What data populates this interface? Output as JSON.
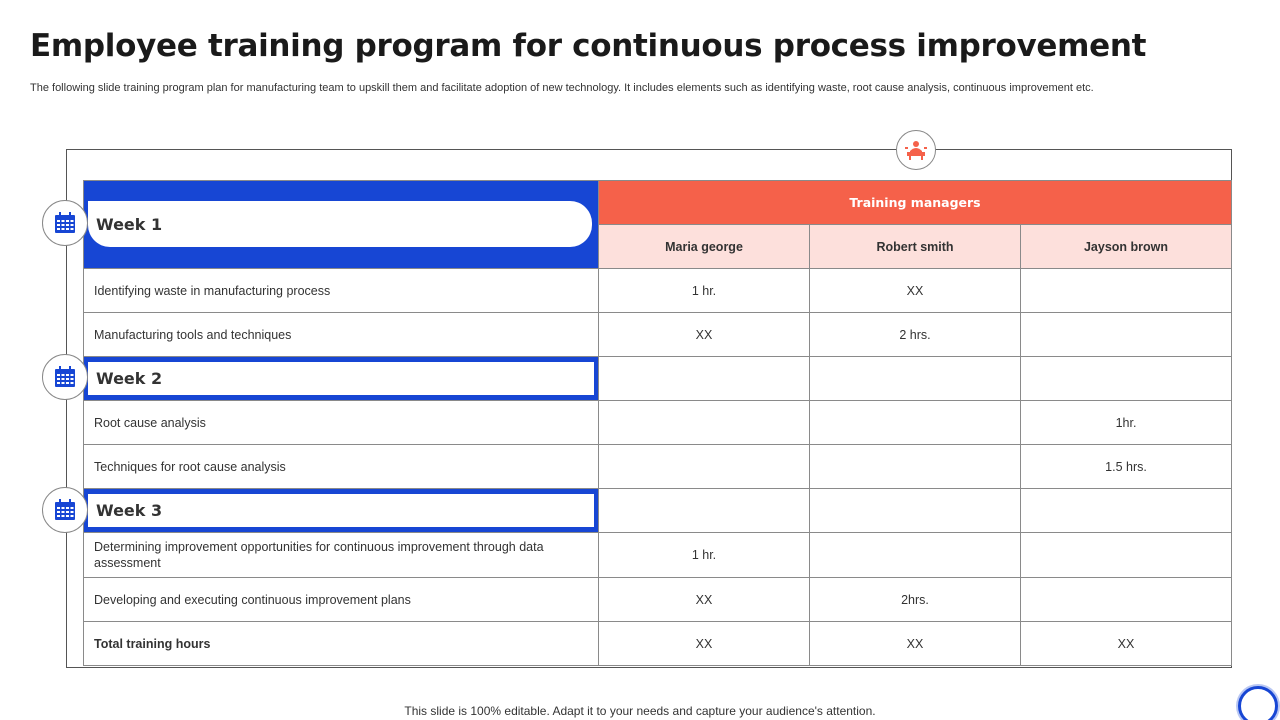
{
  "title": "Employee training program for continuous process improvement",
  "subtitle": "The following slide training program plan for manufacturing team to upskill them and facilitate adoption of new technology. It includes elements such as identifying waste, root cause analysis, continuous improvement etc.",
  "table": {
    "group_header": "Training managers",
    "managers": [
      "Maria george",
      "Robert smith",
      "Jayson brown"
    ],
    "weeks": [
      {
        "label": "Week 1",
        "rows": [
          {
            "task": "Identifying waste in manufacturing  process",
            "values": [
              "1 hr.",
              "XX",
              ""
            ]
          },
          {
            "task": "Manufacturing  tools and techniques",
            "values": [
              "XX",
              "2 hrs.",
              ""
            ]
          }
        ]
      },
      {
        "label": "Week 2",
        "rows": [
          {
            "task": "Root  cause analysis",
            "values": [
              "",
              "",
              "1hr."
            ]
          },
          {
            "task": "Techniques for root cause analysis",
            "values": [
              "",
              "",
              "1.5 hrs."
            ]
          }
        ]
      },
      {
        "label": "Week 3",
        "rows": [
          {
            "task": "Determining  improvement  opportunities for continuous improvement  through data assessment",
            "values": [
              "1 hr.",
              "",
              ""
            ]
          },
          {
            "task": "Developing  and executing continuous improvement  plans",
            "values": [
              "XX",
              "2hrs.",
              ""
            ]
          }
        ]
      }
    ],
    "total": {
      "label": "Total training hours",
      "values": [
        "XX",
        "XX",
        "XX"
      ]
    }
  },
  "icons": {
    "top": "presenter-icon",
    "week": "calendar-icon"
  },
  "colors": {
    "blue": "#1746d4",
    "orange": "#f5614a",
    "pink": "#fde0dc"
  },
  "footer": "This slide is 100% editable. Adapt it to your needs and capture your audience's attention."
}
